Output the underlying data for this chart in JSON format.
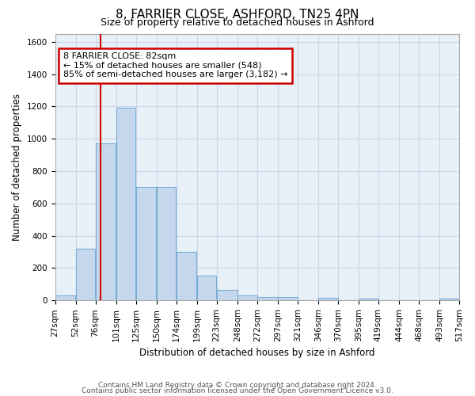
{
  "title": "8, FARRIER CLOSE, ASHFORD, TN25 4PN",
  "subtitle": "Size of property relative to detached houses in Ashford",
  "xlabel": "Distribution of detached houses by size in Ashford",
  "ylabel": "Number of detached properties",
  "footer_line1": "Contains HM Land Registry data © Crown copyright and database right 2024.",
  "footer_line2": "Contains public sector information licensed under the Open Government Licence v3.0.",
  "bar_color": "#c5d8ee",
  "bar_edge_color": "#7aadd4",
  "grid_color": "#c8d8e8",
  "background_color": "#e8f0f8",
  "red_line_x": 82,
  "annotation_line1": "8 FARRIER CLOSE: 82sqm",
  "annotation_line2": "← 15% of detached houses are smaller (548)",
  "annotation_line3": "85% of semi-detached houses are larger (3,182) →",
  "annotation_box_color": "#ffffff",
  "annotation_border_color": "#cc0000",
  "red_line_color": "#cc0000",
  "ylim": [
    0,
    1650
  ],
  "yticks": [
    0,
    200,
    400,
    600,
    800,
    1000,
    1200,
    1400,
    1600
  ],
  "bin_edges": [
    27,
    52,
    76,
    101,
    125,
    150,
    174,
    199,
    223,
    248,
    272,
    297,
    321,
    346,
    370,
    395,
    419,
    444,
    468,
    493,
    517
  ],
  "bar_heights": [
    30,
    320,
    970,
    1190,
    700,
    700,
    300,
    155,
    65,
    30,
    20,
    20,
    0,
    15,
    0,
    10,
    0,
    0,
    0,
    10
  ],
  "title_fontsize": 11,
  "subtitle_fontsize": 9,
  "axis_label_fontsize": 8.5,
  "tick_fontsize": 7.5,
  "annotation_fontsize": 8,
  "footer_fontsize": 6.5
}
